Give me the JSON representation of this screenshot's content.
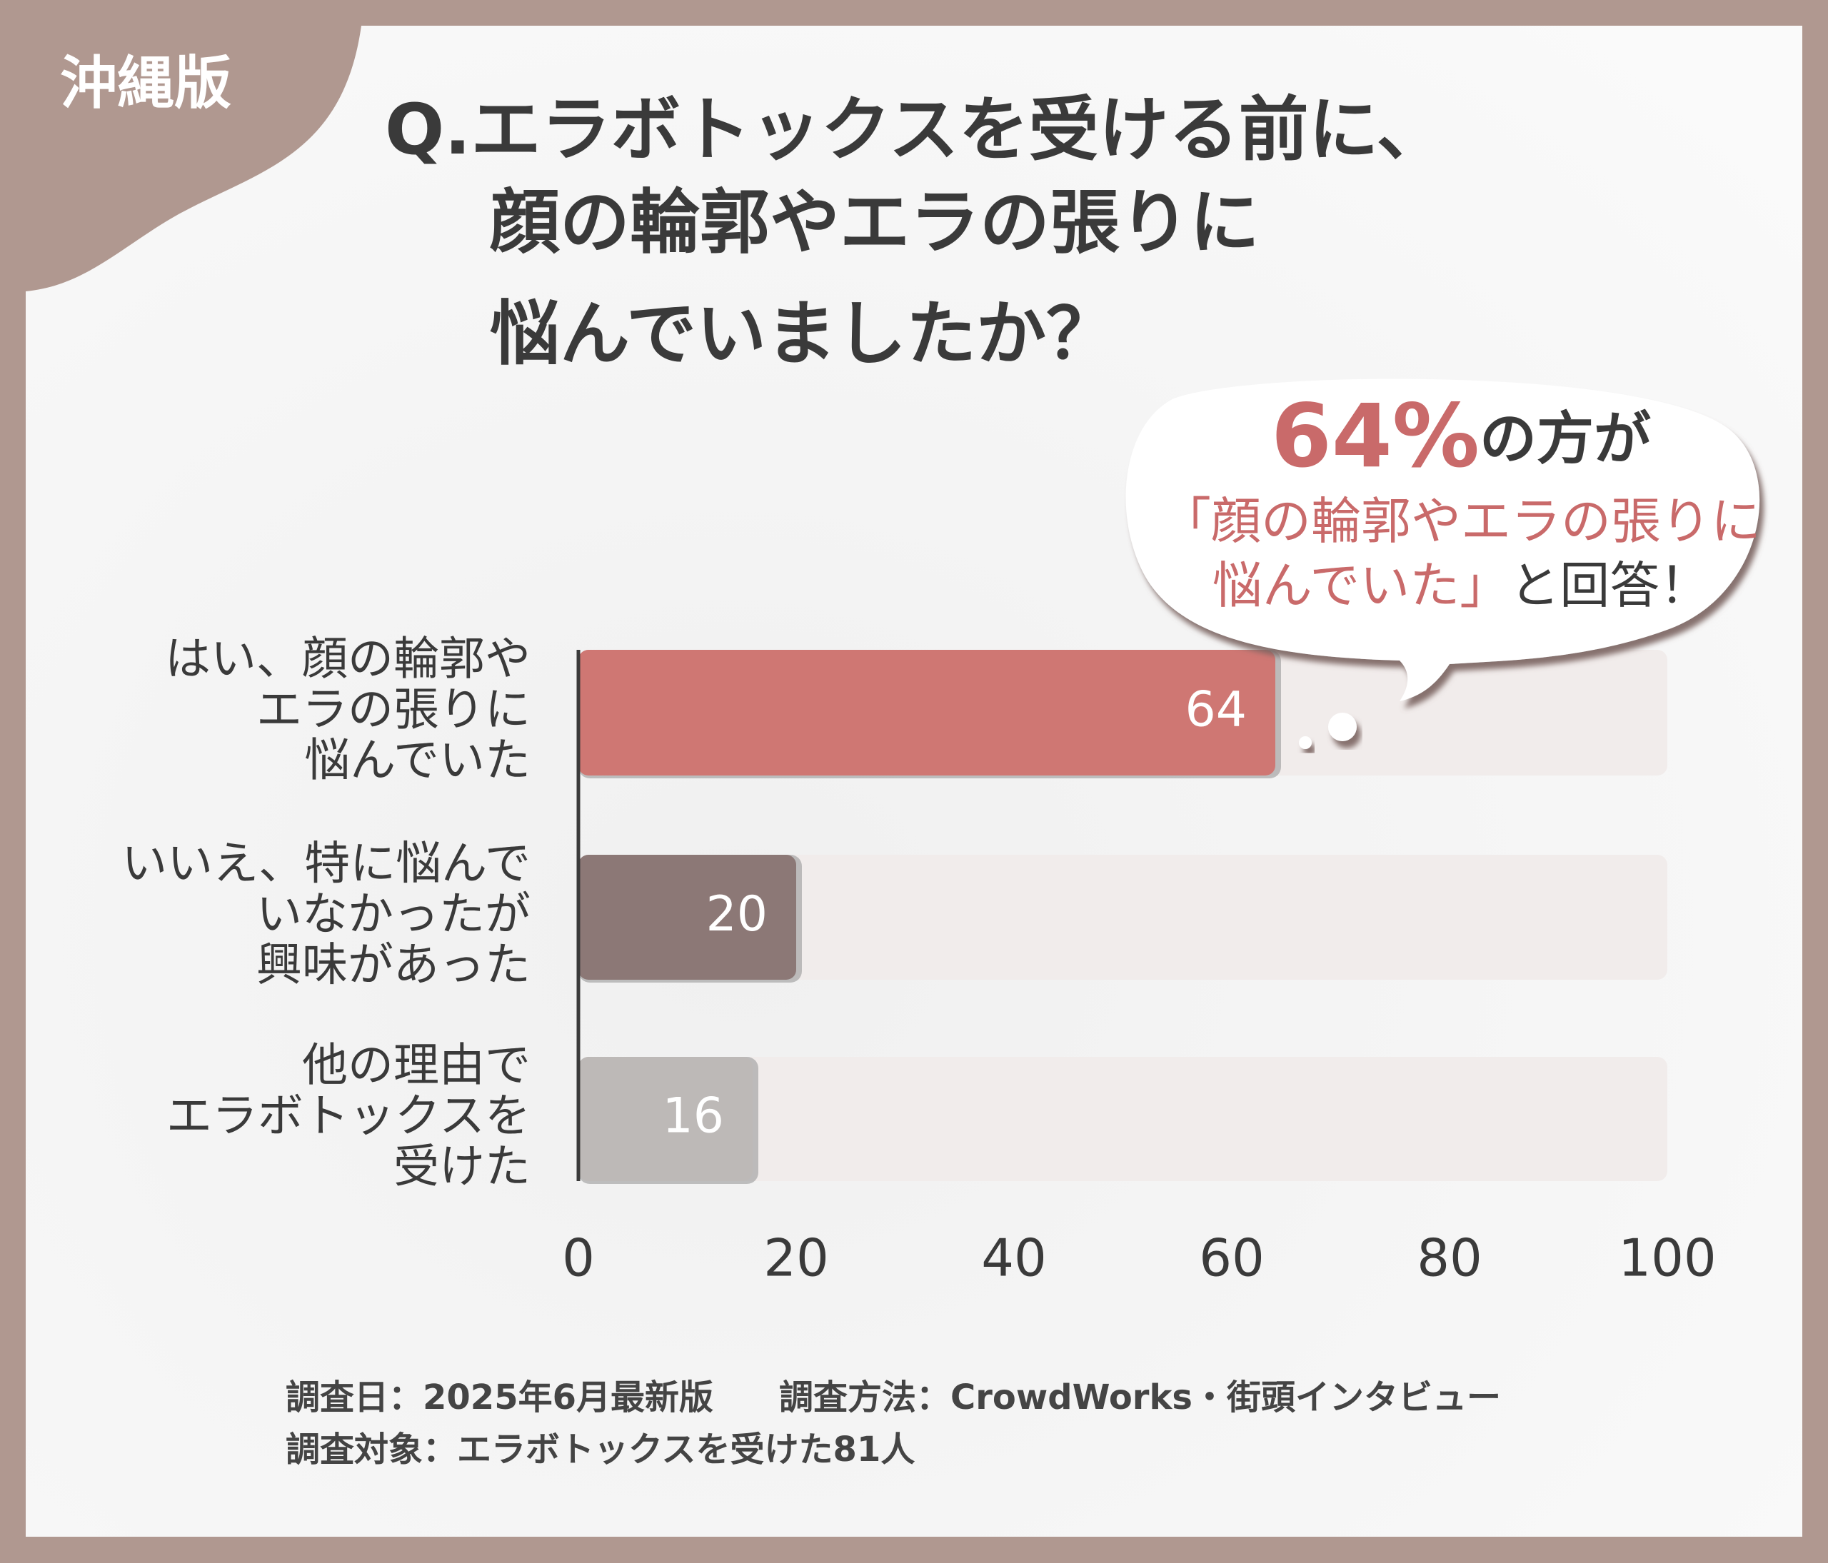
{
  "badge": "沖縄版",
  "callout": {
    "highlight": "64%",
    "line1_rest": "の方が",
    "line2": "「顔の輪郭やエラの張りに",
    "line3_red": "悩んでいた」",
    "line3_rest": "と回答！"
  },
  "footer": {
    "date": "調査日：2025年6月最新版",
    "method": "調査方法：CrowdWorks・街頭インタビュー",
    "target": "調査対象：エラボトックスを受けた81人"
  },
  "chart_data": {
    "type": "bar",
    "orientation": "horizontal",
    "title": [
      "Q.エラボトックスを受ける前に、",
      "顔の輪郭やエラの張りに",
      "悩んでいましたか？"
    ],
    "categories": [
      [
        "はい、顔の輪郭や",
        "エラの張りに",
        "悩んでいた"
      ],
      [
        "いいえ、特に悩んで",
        "いなかったが",
        "興味があった"
      ],
      [
        "他の理由で",
        "エラボトックスを",
        "受けた"
      ]
    ],
    "values": [
      64,
      20,
      16
    ],
    "colors": [
      "#cf7773",
      "#8c7876",
      "#bdb9b7"
    ],
    "xlim": [
      0,
      100
    ],
    "xticks": [
      0,
      20,
      40,
      60,
      80,
      100
    ]
  }
}
